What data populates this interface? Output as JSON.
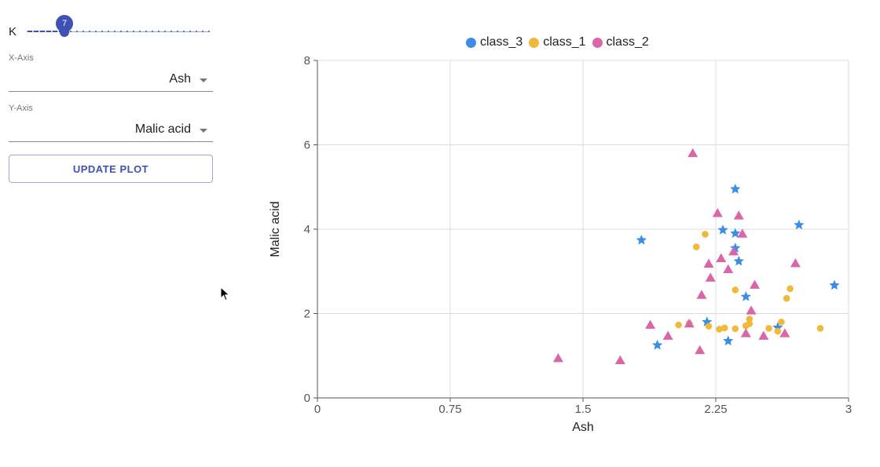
{
  "controls": {
    "k": {
      "label": "K",
      "value": "7",
      "min": 1,
      "max": 30,
      "current": 7
    },
    "x_axis": {
      "label": "X-Axis",
      "value": "Ash"
    },
    "y_axis": {
      "label": "Y-Axis",
      "value": "Malic acid"
    },
    "update_label": "UPDATE PLOT"
  },
  "colors": {
    "accent": "#3f51b5",
    "class_3": "#3b8de6",
    "class_1": "#f0b93a",
    "class_2": "#d966a8"
  },
  "chart_data": {
    "type": "scatter",
    "xlabel": "Ash",
    "ylabel": "Malic acid",
    "xlim": [
      0,
      3
    ],
    "ylim": [
      0,
      8
    ],
    "xticks": [
      "0",
      "0.75",
      "1.5",
      "2.25",
      "3"
    ],
    "yticks": [
      "0",
      "2",
      "4",
      "6",
      "8"
    ],
    "grid": true,
    "legend_position": "top-center",
    "series": [
      {
        "name": "class_3",
        "marker": "star",
        "color": "#3b8de6",
        "points": [
          [
            1.83,
            3.74
          ],
          [
            1.92,
            1.25
          ],
          [
            2.2,
            1.8
          ],
          [
            2.29,
            3.98
          ],
          [
            2.32,
            1.35
          ],
          [
            2.36,
            4.95
          ],
          [
            2.36,
            3.9
          ],
          [
            2.36,
            3.55
          ],
          [
            2.38,
            3.24
          ],
          [
            2.42,
            2.4
          ],
          [
            2.6,
            1.67
          ],
          [
            2.72,
            4.1
          ],
          [
            2.92,
            2.67
          ]
        ]
      },
      {
        "name": "class_1",
        "marker": "circle",
        "color": "#f0b93a",
        "points": [
          [
            2.14,
            3.58
          ],
          [
            2.19,
            3.88
          ],
          [
            2.04,
            1.73
          ],
          [
            2.1,
            1.77
          ],
          [
            2.21,
            1.7
          ],
          [
            2.27,
            1.63
          ],
          [
            2.3,
            1.66
          ],
          [
            2.36,
            2.56
          ],
          [
            2.36,
            1.64
          ],
          [
            2.42,
            1.71
          ],
          [
            2.44,
            1.76
          ],
          [
            2.44,
            1.87
          ],
          [
            2.55,
            1.65
          ],
          [
            2.6,
            1.58
          ],
          [
            2.62,
            1.8
          ],
          [
            2.65,
            2.36
          ],
          [
            2.67,
            2.59
          ],
          [
            2.84,
            1.65
          ]
        ]
      },
      {
        "name": "class_2",
        "marker": "triangle",
        "color": "#d966a8",
        "points": [
          [
            1.36,
            0.94
          ],
          [
            1.71,
            0.89
          ],
          [
            1.88,
            1.73
          ],
          [
            1.98,
            1.47
          ],
          [
            2.1,
            1.76
          ],
          [
            2.12,
            5.8
          ],
          [
            2.16,
            1.13
          ],
          [
            2.17,
            2.44
          ],
          [
            2.21,
            3.18
          ],
          [
            2.22,
            2.85
          ],
          [
            2.26,
            4.38
          ],
          [
            2.28,
            3.31
          ],
          [
            2.32,
            3.05
          ],
          [
            2.35,
            3.47
          ],
          [
            2.38,
            4.32
          ],
          [
            2.4,
            3.89
          ],
          [
            2.42,
            1.53
          ],
          [
            2.45,
            2.07
          ],
          [
            2.47,
            2.68
          ],
          [
            2.52,
            1.47
          ],
          [
            2.64,
            1.53
          ],
          [
            2.7,
            3.19
          ]
        ]
      }
    ]
  }
}
